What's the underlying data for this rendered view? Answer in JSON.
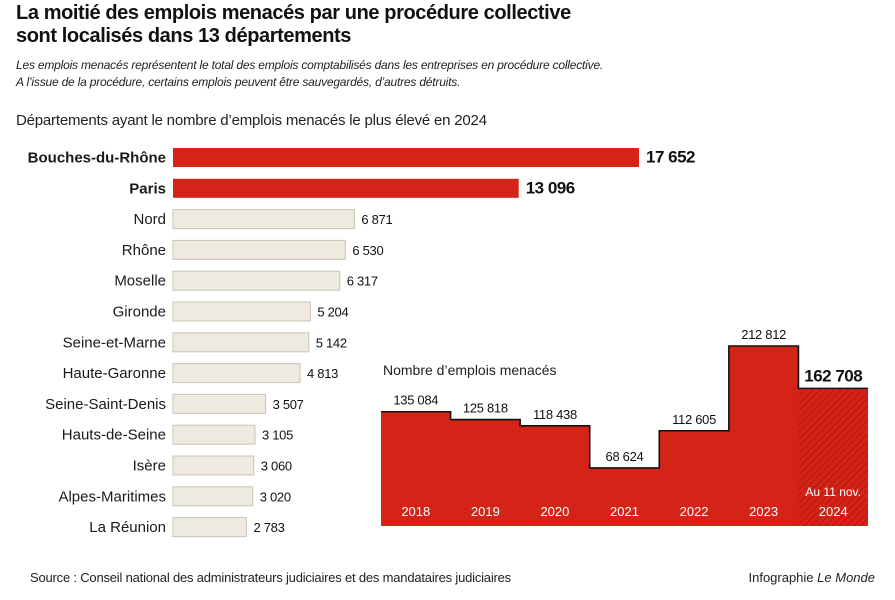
{
  "header": {
    "title_line1": "La moitié des emplois menacés par une procédure collective",
    "title_line2": "sont localisés dans 13 départements",
    "subtitle_line1": "Les emplois menacés représentent le total des emplois comptabilisés dans les entreprises en procédure collective.",
    "subtitle_line2": "A l’issue de la procédure, certains emplois peuvent être sauvegardés, d’autres détruits."
  },
  "colors": {
    "highlight": "#d42418",
    "neutral_fill": "#eeeadf",
    "neutral_stroke": "#c9c4b6",
    "text": "#1a1a1a"
  },
  "chart_data": [
    {
      "type": "bar",
      "orientation": "horizontal",
      "title": "Départements ayant le nombre d’emplois menacés le plus élevé en 2024",
      "categories": [
        "Bouches-du-Rhône",
        "Paris",
        "Nord",
        "Rhône",
        "Moselle",
        "Gironde",
        "Seine-et-Marne",
        "Haute-Garonne",
        "Seine-Saint-Denis",
        "Hauts-de-Seine",
        "Isère",
        "Alpes-Maritimes",
        "La Réunion"
      ],
      "values": [
        17652,
        13096,
        6871,
        6530,
        6317,
        5204,
        5142,
        4813,
        3507,
        3105,
        3060,
        3020,
        2783
      ],
      "value_labels": [
        "17 652",
        "13 096",
        "6 871",
        "6 530",
        "6 317",
        "5 204",
        "5 142",
        "4 813",
        "3 507",
        "3 105",
        "3 060",
        "3 020",
        "2 783"
      ],
      "highlighted": [
        "Bouches-du-Rhône",
        "Paris"
      ],
      "xlim": [
        0,
        17652
      ]
    },
    {
      "type": "area",
      "style": "step",
      "title": "Nombre d’emplois menacés",
      "x": [
        "2018",
        "2019",
        "2020",
        "2021",
        "2022",
        "2023",
        "2024"
      ],
      "values": [
        135084,
        125818,
        118438,
        68624,
        112605,
        212812,
        162708
      ],
      "value_labels": [
        "135 084",
        "125 818",
        "118 438",
        "68 624",
        "112 605",
        "212 812",
        "162 708"
      ],
      "annotation": "Au 11 nov.",
      "ylim": [
        0,
        212812
      ]
    }
  ],
  "footer": {
    "source": "Source : Conseil national des administrateurs judiciaires et des mandataires judiciaires",
    "credit_prefix": "Infographie",
    "credit_brand": "Le Monde"
  }
}
